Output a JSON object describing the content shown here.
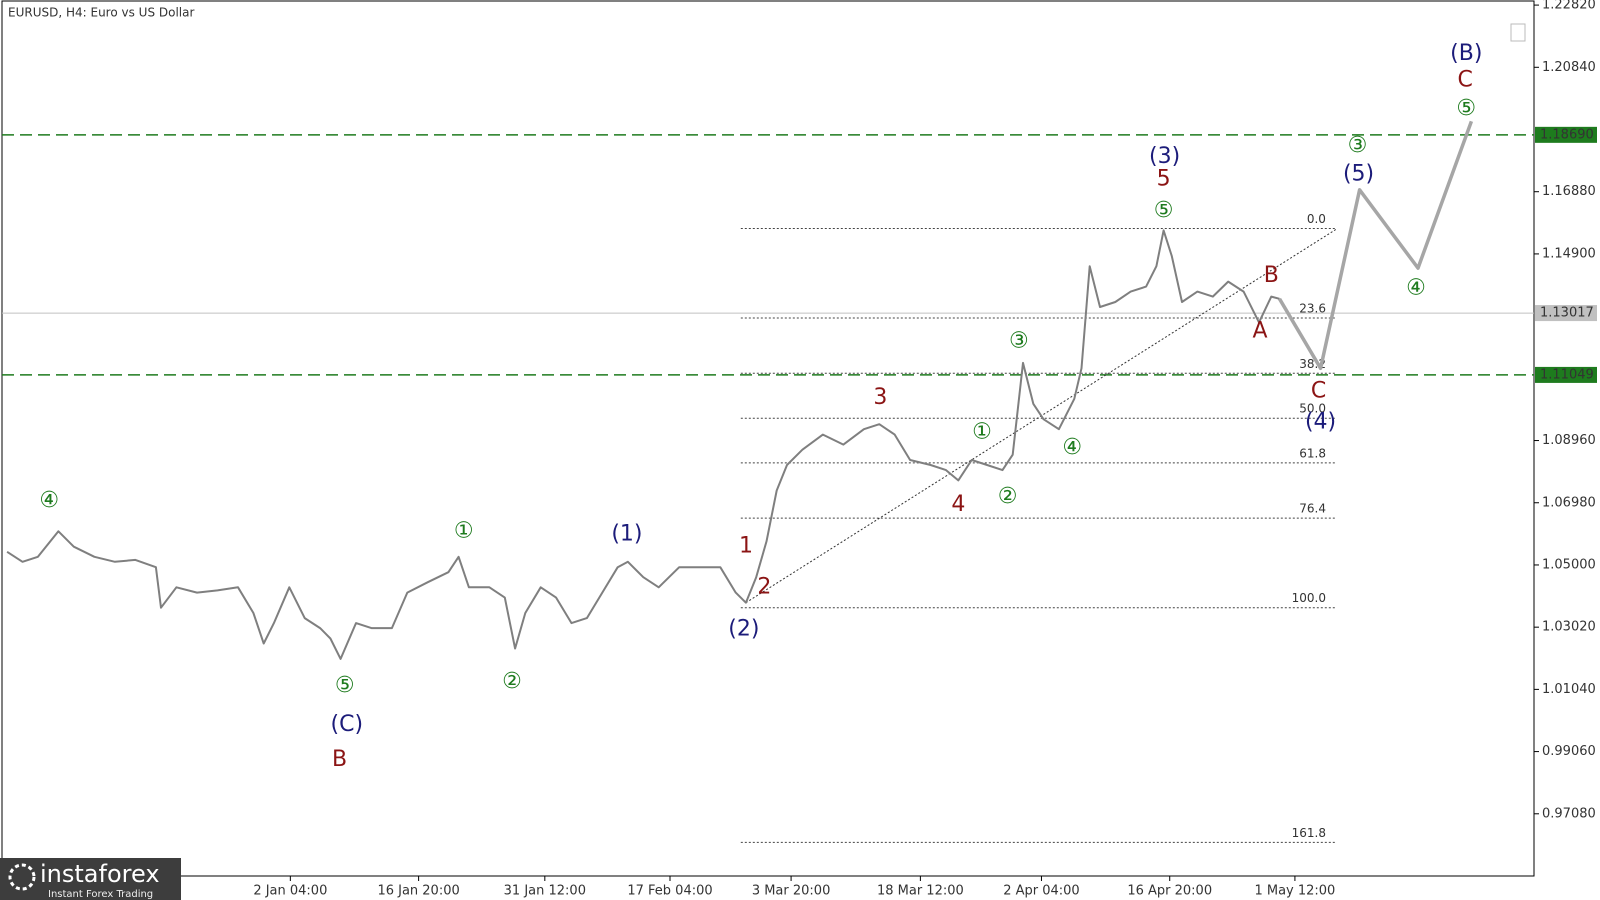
{
  "chart_data": {
    "type": "line",
    "title": "EURUSD, H4:  Euro vs US Dollar",
    "color": "#7f7f7f",
    "x": [
      1,
      4,
      7,
      11,
      14,
      18,
      22,
      26,
      30,
      31,
      34,
      38,
      42,
      46,
      49,
      51,
      53,
      56,
      59,
      62,
      64,
      66,
      69,
      72,
      76,
      79,
      83,
      87,
      89,
      91,
      95,
      98,
      100,
      102,
      105,
      108,
      111,
      114,
      117,
      120,
      122,
      125,
      128,
      132,
      136,
      140,
      143,
      145,
      147,
      149,
      151,
      153,
      156,
      160,
      164,
      168,
      171,
      174,
      177,
      181,
      184,
      186.4,
      189,
      192,
      195,
      197,
      199,
      201,
      203,
      206,
      209,
      210.4,
      212,
      214,
      217,
      220,
      223,
      225,
      226.4,
      228,
      230,
      233,
      236,
      239,
      242,
      245,
      247.4,
      249
    ],
    "values": [
      1.0542,
      1.051,
      1.0526,
      1.0607,
      1.0558,
      1.0526,
      1.051,
      1.0516,
      1.0493,
      1.0364,
      1.0429,
      1.0412,
      1.0419,
      1.0429,
      1.0347,
      1.025,
      1.0315,
      1.0429,
      1.0331,
      1.0299,
      1.0266,
      1.0201,
      1.0315,
      1.0299,
      1.0299,
      1.0412,
      1.0445,
      1.0477,
      1.0526,
      1.0429,
      1.0429,
      1.0396,
      1.0234,
      1.0347,
      1.0429,
      1.0396,
      1.0315,
      1.0331,
      1.0412,
      1.0493,
      1.051,
      1.0461,
      1.0429,
      1.0493,
      1.0493,
      1.0493,
      1.0412,
      1.038,
      1.0461,
      1.0575,
      1.0737,
      1.0818,
      1.0867,
      1.0915,
      1.0883,
      1.0932,
      1.0948,
      1.0915,
      1.0834,
      1.0818,
      1.0802,
      1.0769,
      1.0834,
      1.0818,
      1.0802,
      1.0851,
      1.1143,
      1.1013,
      1.0964,
      1.0932,
      1.1029,
      1.1126,
      1.1451,
      1.1321,
      1.1337,
      1.137,
      1.1386,
      1.1451,
      1.1565,
      1.1483,
      1.1337,
      1.137,
      1.1354,
      1.1402,
      1.137,
      1.1272,
      1.1354,
      1.1347
    ],
    "forecast": {
      "color": "#a6a6a6",
      "x": [
        249,
        257,
        264.6,
        276,
        286.4
      ],
      "values": [
        1.1347,
        1.1126,
        1.1694,
        1.1445,
        1.1912
      ]
    },
    "trendline": {
      "x": [
        145,
        260
      ],
      "values": [
        1.038,
        1.1568
      ]
    },
    "fib": {
      "x": [
        144,
        260
      ],
      "levels": [
        {
          "label": "0.0",
          "price": 1.1571
        },
        {
          "label": "23.6",
          "price": 1.1286
        },
        {
          "label": "38.2",
          "price": 1.111
        },
        {
          "label": "50.0",
          "price": 1.0967
        },
        {
          "label": "61.8",
          "price": 1.0825
        },
        {
          "label": "76.4",
          "price": 1.0649
        },
        {
          "label": "100.0",
          "price": 1.0364
        },
        {
          "label": "161.8",
          "price": 0.9617
        }
      ]
    },
    "levels": [
      {
        "value": 1.1869,
        "label": "1.18690",
        "color": "#1e7b1e",
        "style": "dashed"
      },
      {
        "value": 1.11049,
        "label": "1.11049",
        "color": "#1e7b1e",
        "style": "dashed"
      },
      {
        "value": 1.13017,
        "label": "1.13017",
        "color": "#c0c0c0",
        "style": "solid"
      }
    ],
    "waves": [
      {
        "text": "④",
        "x": 9.2,
        "price": 1.0704,
        "color": "#1e7b1e"
      },
      {
        "text": "⑤",
        "x": 66.8,
        "price": 1.0114,
        "color": "#1e7b1e"
      },
      {
        "text": "①",
        "x": 90,
        "price": 1.0607,
        "color": "#1e7b1e"
      },
      {
        "text": "②",
        "x": 99.4,
        "price": 1.0127,
        "color": "#1e7b1e"
      },
      {
        "text": "①",
        "x": 191,
        "price": 1.0922,
        "color": "#1e7b1e"
      },
      {
        "text": "②",
        "x": 196,
        "price": 1.0717,
        "color": "#1e7b1e"
      },
      {
        "text": "③",
        "x": 198.2,
        "price": 1.1211,
        "color": "#1e7b1e"
      },
      {
        "text": "④",
        "x": 208.6,
        "price": 1.0873,
        "color": "#1e7b1e"
      },
      {
        "text": "⑤",
        "x": 226.4,
        "price": 1.1626,
        "color": "#1e7b1e"
      },
      {
        "text": "③",
        "x": 264.2,
        "price": 1.1834,
        "color": "#1e7b1e"
      },
      {
        "text": "④",
        "x": 275.6,
        "price": 1.138,
        "color": "#1e7b1e"
      },
      {
        "text": "⑤",
        "x": 285.4,
        "price": 1.1951,
        "color": "#1e7b1e"
      },
      {
        "text": "(C)",
        "x": 67.2,
        "price": 0.999,
        "color": "#1c1c7a"
      },
      {
        "text": "(1)",
        "x": 121.8,
        "price": 1.0597,
        "color": "#1c1c7a"
      },
      {
        "text": "(2)",
        "x": 144.6,
        "price": 1.0295,
        "color": "#1c1c7a"
      },
      {
        "text": "(3)",
        "x": 226.6,
        "price": 1.1798,
        "color": "#1c1c7a"
      },
      {
        "text": "(5)",
        "x": 264.4,
        "price": 1.1743,
        "color": "#1c1c7a"
      },
      {
        "text": "(4)",
        "x": 257,
        "price": 1.0954,
        "color": "#1c1c7a"
      },
      {
        "text": "(B)",
        "x": 285.4,
        "price": 1.2126,
        "color": "#1c1c7a"
      },
      {
        "text": "B",
        "x": 65.8,
        "price": 0.988,
        "color": "#8b1414"
      },
      {
        "text": "1",
        "x": 145,
        "price": 1.0558,
        "color": "#8b1414"
      },
      {
        "text": "2",
        "x": 148.6,
        "price": 1.0429,
        "color": "#8b1414"
      },
      {
        "text": "3",
        "x": 171.2,
        "price": 1.1032,
        "color": "#8b1414"
      },
      {
        "text": "4",
        "x": 186.4,
        "price": 1.0691,
        "color": "#8b1414"
      },
      {
        "text": "5",
        "x": 226.4,
        "price": 1.1727,
        "color": "#8b1414"
      },
      {
        "text": "A",
        "x": 245.2,
        "price": 1.1243,
        "color": "#8b1414"
      },
      {
        "text": "B",
        "x": 247.4,
        "price": 1.1419,
        "color": "#8b1414"
      },
      {
        "text": "C",
        "x": 256.6,
        "price": 1.1052,
        "color": "#8b1414"
      },
      {
        "text": "C",
        "x": 285.2,
        "price": 1.2042,
        "color": "#8b1414"
      }
    ],
    "xlim": [
      0,
      298.6
    ],
    "ylim": [
      0.951,
      1.2295
    ],
    "xticks": [
      {
        "value": 56.2,
        "label": "2 Jan 04:00"
      },
      {
        "value": 81.2,
        "label": "16 Jan 20:00"
      },
      {
        "value": 105.8,
        "label": "31 Jan 12:00"
      },
      {
        "value": 130.2,
        "label": "17 Feb 04:00"
      },
      {
        "value": 153.8,
        "label": "3 Mar 20:00"
      },
      {
        "value": 179,
        "label": "18 Mar 12:00"
      },
      {
        "value": 202.6,
        "label": "2 Apr 04:00"
      },
      {
        "value": 227.6,
        "label": "16 Apr 20:00"
      },
      {
        "value": 252,
        "label": "1 May 12:00"
      }
    ],
    "yticks": [
      {
        "value": 1.2282,
        "label": "1.22820"
      },
      {
        "value": 1.2084,
        "label": "1.20840"
      },
      {
        "value": 1.1688,
        "label": "1.16880"
      },
      {
        "value": 1.149,
        "label": "1.14900"
      },
      {
        "value": 1.0896,
        "label": "1.08960"
      },
      {
        "value": 1.0698,
        "label": "1.06980"
      },
      {
        "value": 1.05,
        "label": "1.05000"
      },
      {
        "value": 1.0302,
        "label": "1.03020"
      },
      {
        "value": 1.0104,
        "label": "1.01040"
      },
      {
        "value": 0.9906,
        "label": "0.99060"
      },
      {
        "value": 0.9708,
        "label": "0.97080"
      }
    ],
    "logo": {
      "name": "instaforex",
      "tagline": "Instant Forex Trading"
    }
  }
}
